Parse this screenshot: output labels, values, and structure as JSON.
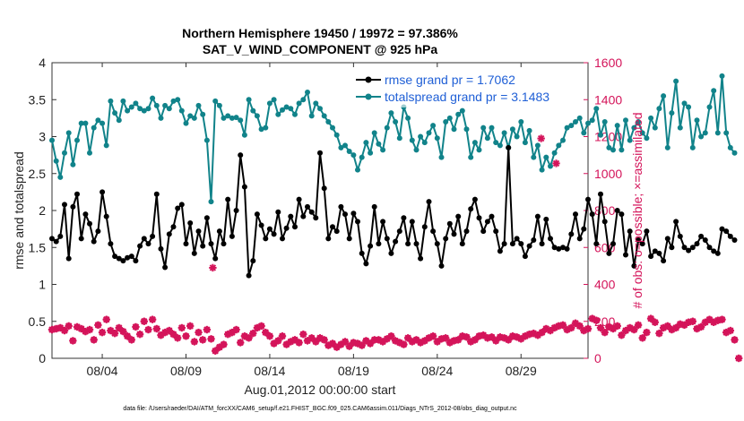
{
  "chart_data": {
    "type": "line",
    "title": "Northern Hemisphere 19450 / 19972 = 97.386%",
    "subtitle": "SAT_V_WIND_COMPONENT @ 925 hPa",
    "xlabel": "Aug.01,2012 00:00:00 start",
    "ylabel": "rmse and totalspread",
    "ylabel_right": "# of obs: o=possible; ×=assimilated",
    "footnote": "data file: /Users/raeder/DAI/ATM_forcXX/CAM6_setup/f.e21.FHIST_BGC.f09_025.CAM6assim.011/Diags_NTrS_2012-08/obs_diag_output.nc",
    "xlim": [
      1,
      33
    ],
    "ylim": [
      0,
      4
    ],
    "ylim_right": [
      0,
      1600
    ],
    "xticks": [
      4,
      9,
      14,
      19,
      24,
      29
    ],
    "xtick_labels": [
      "08/04",
      "08/09",
      "08/14",
      "08/19",
      "08/24",
      "08/29"
    ],
    "yticks": [
      0,
      0.5,
      1,
      1.5,
      2,
      2.5,
      3,
      3.5,
      4
    ],
    "ytick_labels": [
      "0",
      "0.5",
      "1",
      "1.5",
      "2",
      "2.5",
      "3",
      "3.5",
      "4"
    ],
    "yticks_right": [
      0,
      200,
      400,
      600,
      800,
      1000,
      1200,
      1400,
      1600
    ],
    "ytick_labels_right": [
      "0",
      "200",
      "400",
      "600",
      "800",
      "1000",
      "1200",
      "1400",
      "1600"
    ],
    "legend_position": "top-right",
    "colors": {
      "rmse": "#000000",
      "spread": "#11838a",
      "obs": "#d4145a"
    },
    "series": [
      {
        "name": "rmse grand pr = 1.7062",
        "color": "#000000",
        "x_start": 1.0,
        "x_step": 0.25,
        "values": [
          1.62,
          1.58,
          1.65,
          2.08,
          1.35,
          2.05,
          2.22,
          1.62,
          1.95,
          1.82,
          1.58,
          1.72,
          2.25,
          1.92,
          1.55,
          1.38,
          1.35,
          1.32,
          1.36,
          1.38,
          1.32,
          1.52,
          1.62,
          1.55,
          1.65,
          2.22,
          1.48,
          1.23,
          1.68,
          1.78,
          2.03,
          2.08,
          1.55,
          1.83,
          1.42,
          1.72,
          1.52,
          1.9,
          1.55,
          1.35,
          1.72,
          1.55,
          2.15,
          1.65,
          2.0,
          2.75,
          2.32,
          1.12,
          1.32,
          1.95,
          1.8,
          1.62,
          1.75,
          1.68,
          1.98,
          1.62,
          1.76,
          1.92,
          1.78,
          2.15,
          1.92,
          2.05,
          1.98,
          1.9,
          2.78,
          2.3,
          1.62,
          1.78,
          1.72,
          2.05,
          1.95,
          1.62,
          1.96,
          1.85,
          1.42,
          1.28,
          1.52,
          2.05,
          1.55,
          1.85,
          1.62,
          1.42,
          1.58,
          1.72,
          1.9,
          1.55,
          1.85,
          1.55,
          1.35,
          1.78,
          2.12,
          1.72,
          1.55,
          1.25,
          1.62,
          1.82,
          1.68,
          1.92,
          1.55,
          1.72,
          2.02,
          2.15,
          1.9,
          1.72,
          1.85,
          1.92,
          1.72,
          1.45,
          1.55,
          2.85,
          1.55,
          1.62,
          1.55,
          1.38,
          1.52,
          1.6,
          1.92,
          1.55,
          1.88,
          1.62,
          1.5,
          1.48,
          1.5,
          1.48,
          1.68,
          1.95,
          1.62,
          1.75,
          2.15,
          1.95,
          1.55,
          2.22,
          1.85,
          1.42,
          1.55,
          2.0,
          1.95,
          1.4,
          1.72,
          1.25,
          1.6,
          1.55,
          1.72,
          1.38,
          1.45,
          1.42,
          1.32,
          1.62,
          1.5,
          1.85,
          1.65,
          1.5,
          1.46,
          1.5,
          1.55,
          1.65,
          1.6,
          1.5,
          1.45,
          1.42,
          1.75,
          1.72,
          1.65,
          1.6
        ]
      },
      {
        "name": "totalspread grand pr = 3.1483",
        "color": "#11838a",
        "x_start": 1.0,
        "x_step": 0.25,
        "values": [
          2.95,
          2.67,
          2.45,
          2.78,
          3.05,
          2.62,
          2.95,
          3.18,
          3.18,
          2.78,
          3.12,
          3.22,
          3.18,
          2.88,
          3.48,
          3.32,
          3.22,
          3.48,
          3.35,
          3.4,
          3.45,
          3.38,
          3.35,
          3.38,
          3.52,
          3.42,
          3.25,
          3.42,
          3.38,
          3.48,
          3.5,
          3.35,
          3.18,
          3.28,
          3.25,
          3.42,
          3.3,
          2.95,
          2.12,
          3.48,
          3.42,
          3.25,
          3.28,
          3.25,
          3.26,
          3.22,
          3.02,
          3.5,
          3.35,
          3.28,
          3.1,
          3.12,
          3.45,
          3.5,
          3.3,
          3.36,
          3.4,
          3.38,
          3.3,
          3.45,
          3.5,
          3.6,
          3.28,
          3.45,
          3.38,
          3.28,
          3.2,
          3.12,
          3.02,
          2.85,
          2.88,
          2.8,
          2.75,
          2.55,
          2.72,
          2.92,
          2.78,
          3.05,
          2.9,
          2.82,
          3.12,
          3.32,
          3.2,
          2.98,
          3.4,
          3.25,
          2.95,
          2.82,
          3.0,
          2.92,
          3.05,
          3.15,
          2.98,
          2.72,
          3.2,
          3.25,
          3.1,
          3.3,
          3.35,
          3.1,
          2.72,
          2.92,
          2.82,
          3.12,
          2.98,
          3.12,
          2.92,
          2.88,
          3.05,
          2.85,
          3.1,
          3.0,
          3.2,
          2.92,
          3.08,
          2.72,
          2.88,
          2.55,
          2.72,
          2.6,
          2.78,
          2.88,
          2.95,
          3.12,
          3.15,
          3.2,
          3.25,
          3.05,
          3.18,
          3.22,
          3.38,
          3.02,
          3.2,
          2.85,
          2.82,
          3.15,
          2.82,
          3.22,
          2.95,
          3.12,
          3.2,
          3.05,
          2.98,
          3.25,
          3.12,
          3.38,
          3.55,
          2.85,
          3.32,
          3.75,
          3.12,
          3.45,
          3.4,
          2.85,
          3.22,
          3.0,
          3.05,
          3.4,
          3.62,
          3.05,
          3.82,
          3.05,
          2.85,
          2.78
        ]
      },
      {
        "name": "assimilated",
        "color": "#d4145a",
        "x_start": 1.0,
        "x_step": 0.25,
        "values": [
          155,
          160,
          165,
          150,
          175,
          95,
          170,
          160,
          145,
          155,
          100,
          180,
          140,
          210,
          150,
          135,
          165,
          145,
          120,
          100,
          170,
          130,
          200,
          155,
          210,
          160,
          125,
          140,
          150,
          130,
          110,
          165,
          120,
          175,
          90,
          140,
          100,
          155,
          105,
          40,
          60,
          75,
          130,
          140,
          155,
          85,
          120,
          110,
          135,
          165,
          175,
          140,
          120,
          80,
          95,
          120,
          75,
          90,
          100,
          85,
          130,
          95,
          110,
          90,
          110,
          100,
          70,
          80,
          60,
          75,
          90,
          65,
          85,
          80,
          70,
          95,
          80,
          100,
          100,
          90,
          105,
          120,
          95,
          85,
          75,
          110,
          90,
          100,
          85,
          95,
          110,
          120,
          90,
          105,
          110,
          85,
          95,
          100,
          120,
          115,
          90,
          100,
          120,
          125,
          110,
          115,
          95,
          115,
          110,
          100,
          120,
          115,
          105,
          120,
          130,
          135,
          125,
          140,
          160,
          150,
          165,
          175,
          180,
          155,
          165,
          190,
          175,
          150,
          160,
          215,
          205,
          165,
          140,
          170,
          160,
          175,
          125,
          150,
          165,
          155,
          180,
          110,
          140,
          215,
          195,
          135,
          165,
          175,
          155,
          165,
          185,
          180,
          195,
          200,
          160,
          170,
          195,
          210,
          195,
          205,
          210,
          140,
          150,
          100,
          0
        ]
      },
      {
        "name": "possible",
        "color": "#d4145a",
        "x_start": 1.0,
        "x_step": 0.25,
        "values": [
          155,
          160,
          165,
          150,
          175,
          95,
          170,
          160,
          145,
          155,
          100,
          180,
          140,
          210,
          150,
          135,
          165,
          145,
          120,
          100,
          170,
          130,
          200,
          155,
          210,
          160,
          125,
          140,
          150,
          130,
          110,
          165,
          120,
          175,
          90,
          140,
          100,
          155,
          105,
          40,
          60,
          75,
          130,
          140,
          155,
          85,
          120,
          110,
          135,
          165,
          175,
          140,
          120,
          80,
          95,
          120,
          75,
          90,
          100,
          85,
          130,
          95,
          110,
          90,
          110,
          100,
          70,
          80,
          60,
          75,
          90,
          65,
          85,
          80,
          70,
          95,
          80,
          100,
          100,
          90,
          105,
          120,
          95,
          85,
          75,
          110,
          90,
          100,
          85,
          95,
          110,
          120,
          90,
          105,
          110,
          85,
          95,
          100,
          120,
          115,
          90,
          100,
          120,
          125,
          110,
          115,
          95,
          115,
          110,
          100,
          120,
          115,
          105,
          120,
          130,
          135,
          125,
          140,
          160,
          150,
          165,
          175,
          180,
          155,
          165,
          190,
          175,
          150,
          160,
          215,
          205,
          165,
          140,
          170,
          160,
          175,
          125,
          150,
          165,
          155,
          180,
          110,
          140,
          215,
          195,
          135,
          165,
          175,
          155,
          165,
          185,
          180,
          195,
          200,
          160,
          170,
          195,
          210,
          195,
          205,
          210,
          140,
          150,
          100,
          0
        ]
      }
    ],
    "extra_points": [
      {
        "x": 10.6,
        "y_right": 490
      },
      {
        "x": 30.2,
        "y_right": 1190
      },
      {
        "x": 31.1,
        "y_right": 1055
      }
    ]
  }
}
